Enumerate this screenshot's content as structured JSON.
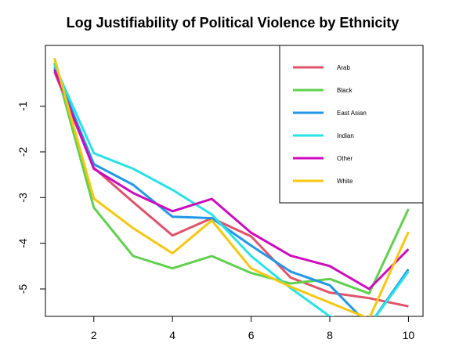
{
  "chart_data": {
    "type": "line",
    "title": "Log Justifiability of Political Violence by Ethnicity",
    "xlabel": "",
    "ylabel": "",
    "x": [
      1,
      2,
      3,
      4,
      5,
      6,
      7,
      8,
      9,
      10
    ],
    "x_ticks": [
      2,
      4,
      6,
      8,
      10
    ],
    "y_ticks": [
      -1,
      -2,
      -3,
      -4,
      -5
    ],
    "xlim": [
      0.77,
      10.37
    ],
    "ylim": [
      -5.6,
      0.33
    ],
    "legend_position": "top-right",
    "series": [
      {
        "name": "Arab",
        "color": "#df536b",
        "values": [
          -0.25,
          -2.35,
          -3.1,
          -3.83,
          -3.45,
          -3.85,
          -4.75,
          -5.08,
          -5.2,
          -5.38
        ]
      },
      {
        "name": "Black",
        "color": "#61d04f",
        "values": [
          -0.05,
          -3.22,
          -4.28,
          -4.55,
          -4.28,
          -4.65,
          -4.88,
          -4.78,
          -5.1,
          -3.25
        ]
      },
      {
        "name": "East Asian",
        "color": "#2297e6",
        "values": [
          -0.15,
          -2.27,
          -2.72,
          -3.42,
          -3.45,
          -4.05,
          -4.62,
          -4.92,
          -5.8,
          -4.57
        ]
      },
      {
        "name": "Indian",
        "color": "#28e2e5",
        "values": [
          -0.1,
          -2.03,
          -2.37,
          -2.83,
          -3.37,
          -4.28,
          -4.98,
          -5.6,
          -5.8,
          -4.62
        ]
      },
      {
        "name": "Other",
        "color": "#cd0bbc",
        "values": [
          -0.2,
          -2.37,
          -2.9,
          -3.3,
          -3.03,
          -3.77,
          -4.27,
          -4.5,
          -5.0,
          -4.13
        ]
      },
      {
        "name": "White",
        "color": "#f5c710",
        "values": [
          0.05,
          -3.02,
          -3.67,
          -4.22,
          -3.5,
          -4.55,
          -4.95,
          -5.3,
          -5.65,
          -3.75
        ]
      }
    ]
  }
}
